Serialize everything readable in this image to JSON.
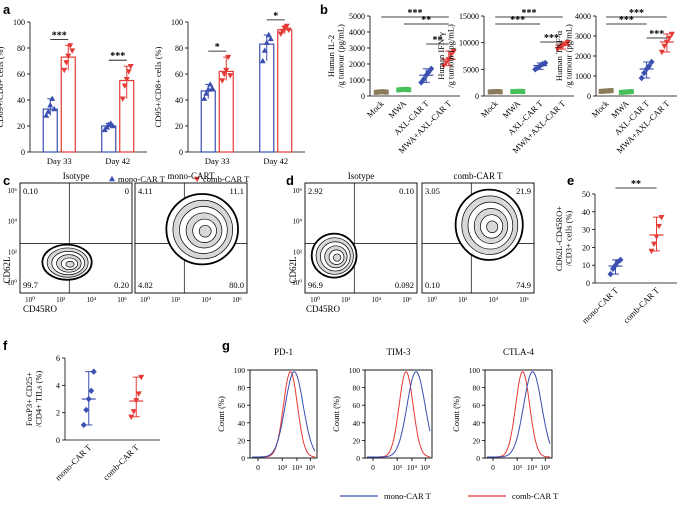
{
  "colors": {
    "blue": "#3a4fb0",
    "red": "#e53a36",
    "gray": "#8c7a5a",
    "green": "#46c05a"
  },
  "panels": {
    "a": "a",
    "b": "b",
    "c": "c",
    "d": "d",
    "e": "e",
    "f": "f",
    "g": "g"
  },
  "legend": {
    "mono": "mono-CAR T",
    "comb": "comb-CAR T"
  },
  "chart_data": [
    {
      "id": "a1",
      "type": "bar",
      "ylabel": "CD69+/CD8+ cells (%)",
      "ylim": [
        0,
        100
      ],
      "yticks": [
        "0",
        "20",
        "40",
        "60",
        "80",
        "100"
      ],
      "categories": [
        "Day 33",
        "Day 42"
      ],
      "series": [
        {
          "name": "mono-CAR T",
          "values": [
            33,
            20
          ],
          "points": [
            [
              28,
              31,
              36,
              41,
              33
            ],
            [
              17,
              19,
              21,
              22,
              20
            ]
          ]
        },
        {
          "name": "comb-CAR T",
          "values": [
            73,
            55
          ],
          "points": [
            [
              63,
              69,
              74,
              82,
              78
            ],
            [
              41,
              51,
              56,
              62,
              66
            ]
          ]
        }
      ],
      "sig": [
        "***",
        "***"
      ]
    },
    {
      "id": "a2",
      "type": "bar",
      "ylabel": "CD95+/CD8+ cells (%)",
      "ylim": [
        0,
        100
      ],
      "yticks": [
        "0",
        "20",
        "40",
        "60",
        "80",
        "100"
      ],
      "categories": [
        "Day 33",
        "Day 42"
      ],
      "series": [
        {
          "name": "mono-CAR T",
          "values": [
            47,
            83
          ],
          "points": [
            [
              41,
              45,
              48,
              52,
              49
            ],
            [
              70,
              78,
              84,
              90,
              87
            ]
          ]
        },
        {
          "name": "comb-CAR T",
          "values": [
            62,
            94
          ],
          "points": [
            [
              55,
              60,
              63,
              73,
              59
            ],
            [
              91,
              93,
              95,
              97,
              94
            ]
          ]
        }
      ],
      "sig": [
        "*",
        "*"
      ]
    },
    {
      "id": "b1",
      "type": "scatter",
      "ylabel": "Human IL-2\n/g tumour (pg/mL)",
      "ylim": [
        0,
        5000
      ],
      "yticks": [
        "0",
        "1000",
        "2000",
        "3000",
        "4000",
        "5000"
      ],
      "categories": [
        "Mock",
        "MWA",
        "AXL-CAR T",
        "MWA+AXL-CAR T"
      ],
      "means": [
        250,
        400,
        1300,
        2300
      ],
      "points": [
        [
          230,
          250,
          260,
          270,
          240
        ],
        [
          380,
          400,
          410,
          420,
          390
        ],
        [
          850,
          1050,
          1300,
          1500,
          1700
        ],
        [
          1900,
          2100,
          2300,
          2600,
          2800
        ]
      ],
      "sig": [
        "**",
        "***",
        "**"
      ]
    },
    {
      "id": "b2",
      "type": "scatter",
      "ylabel": "Human IFN-γ\n/g tumour (pg/mL)",
      "ylim": [
        0,
        15000
      ],
      "yticks": [
        "0",
        "5000",
        "10000",
        "15000"
      ],
      "categories": [
        "Mock",
        "MWA",
        "AXL-CAR T",
        "MWA+AXL-CAR T"
      ],
      "means": [
        800,
        850,
        5700,
        9500
      ],
      "points": [
        [
          760,
          800,
          820,
          840,
          780
        ],
        [
          830,
          850,
          860,
          880,
          840
        ],
        [
          5000,
          5300,
          5700,
          6000,
          6200
        ],
        [
          8800,
          9200,
          9500,
          9800,
          10100
        ]
      ],
      "sig": [
        "***",
        "***",
        "***"
      ]
    },
    {
      "id": "b3",
      "type": "scatter",
      "ylabel": "Human TNF-α\n/g tumour (pg/mL)",
      "ylim": [
        0,
        4000
      ],
      "yticks": [
        "0",
        "1000",
        "2000",
        "3000",
        "4000"
      ],
      "categories": [
        "Mock",
        "MWA",
        "AXL-CAR T",
        "MWA+AXL-CAR T"
      ],
      "means": [
        250,
        200,
        1350,
        2700
      ],
      "points": [
        [
          230,
          240,
          250,
          260,
          270
        ],
        [
          180,
          190,
          200,
          210,
          220
        ],
        [
          900,
          1150,
          1350,
          1500,
          1700
        ],
        [
          2200,
          2500,
          2700,
          2900,
          3100
        ]
      ],
      "sig": [
        "***",
        "***",
        "***"
      ]
    },
    {
      "id": "c1",
      "type": "contour",
      "title": "Isotype",
      "xlabel": "CD45RO",
      "ylabel": "CD62L",
      "quadrants": [
        "0.10",
        "0",
        "99.7",
        "0.20"
      ]
    },
    {
      "id": "c2",
      "type": "contour",
      "title": "mono-CART",
      "quadrants": [
        "4.11",
        "11.1",
        "4.82",
        "80.0"
      ]
    },
    {
      "id": "d1",
      "type": "contour",
      "title": "Isotype",
      "xlabel": "CD45RO",
      "ylabel": "CD62L",
      "quadrants": [
        "2.92",
        "0.10",
        "96.9",
        "0.092"
      ]
    },
    {
      "id": "d2",
      "type": "contour",
      "title": "comb-CAR T",
      "quadrants": [
        "3.05",
        "21.9",
        "0.10",
        "74.9"
      ]
    },
    {
      "id": "e",
      "type": "scatter",
      "ylabel": "CD62L-CD45RO+\n/CD3+ cells (%)",
      "ylim": [
        0,
        50
      ],
      "yticks": [
        "0",
        "10",
        "20",
        "30",
        "40",
        "50"
      ],
      "categories": [
        "mono-CAR T",
        "comb-CAR T"
      ],
      "means": [
        9.5,
        27
      ],
      "points": [
        [
          5,
          8,
          10,
          12,
          13
        ],
        [
          18,
          22,
          26,
          32,
          37
        ]
      ],
      "sig": [
        "**"
      ]
    },
    {
      "id": "f",
      "type": "scatter",
      "ylabel": "FoxP3+ CD25+\n/CD4+ TILs (%)",
      "ylim": [
        0,
        6
      ],
      "yticks": [
        "0",
        "2",
        "4",
        "6"
      ],
      "categories": [
        "mono-CAR T",
        "comb-CAR T"
      ],
      "means": [
        3.0,
        2.85
      ],
      "points": [
        [
          1.1,
          2.2,
          3.0,
          3.6,
          5.0
        ],
        [
          1.7,
          2.1,
          2.9,
          3.4,
          4.6
        ]
      ],
      "sig": []
    },
    {
      "id": "g1",
      "type": "histogram",
      "title": "PD-1",
      "ylabel": "Count (%)",
      "ylim": [
        0,
        100
      ],
      "yticks": [
        "0",
        "20",
        "40",
        "60",
        "80",
        "100"
      ],
      "xticks": [
        "0",
        "10³",
        "10⁴",
        "10⁵"
      ],
      "peaks": {
        "mono": 1500,
        "comb": 700
      }
    },
    {
      "id": "g2",
      "type": "histogram",
      "title": "TIM-3",
      "ylabel": "Count (%)",
      "ylim": [
        0,
        100
      ],
      "yticks": [
        "0",
        "20",
        "40",
        "60",
        "80",
        "100"
      ],
      "xticks": [
        "0",
        "10³",
        "10⁴",
        "10⁵"
      ],
      "peaks": {
        "mono": 6000,
        "comb": 800
      }
    },
    {
      "id": "g3",
      "type": "histogram",
      "title": "CTLA-4",
      "ylabel": "Count (%)",
      "ylim": [
        0,
        100
      ],
      "yticks": [
        "0",
        "20",
        "40",
        "60",
        "80",
        "100"
      ],
      "xticks": [
        "0",
        "10³",
        "10⁴",
        "10⁵"
      ],
      "peaks": {
        "mono": 3000,
        "comb": 400
      }
    }
  ]
}
